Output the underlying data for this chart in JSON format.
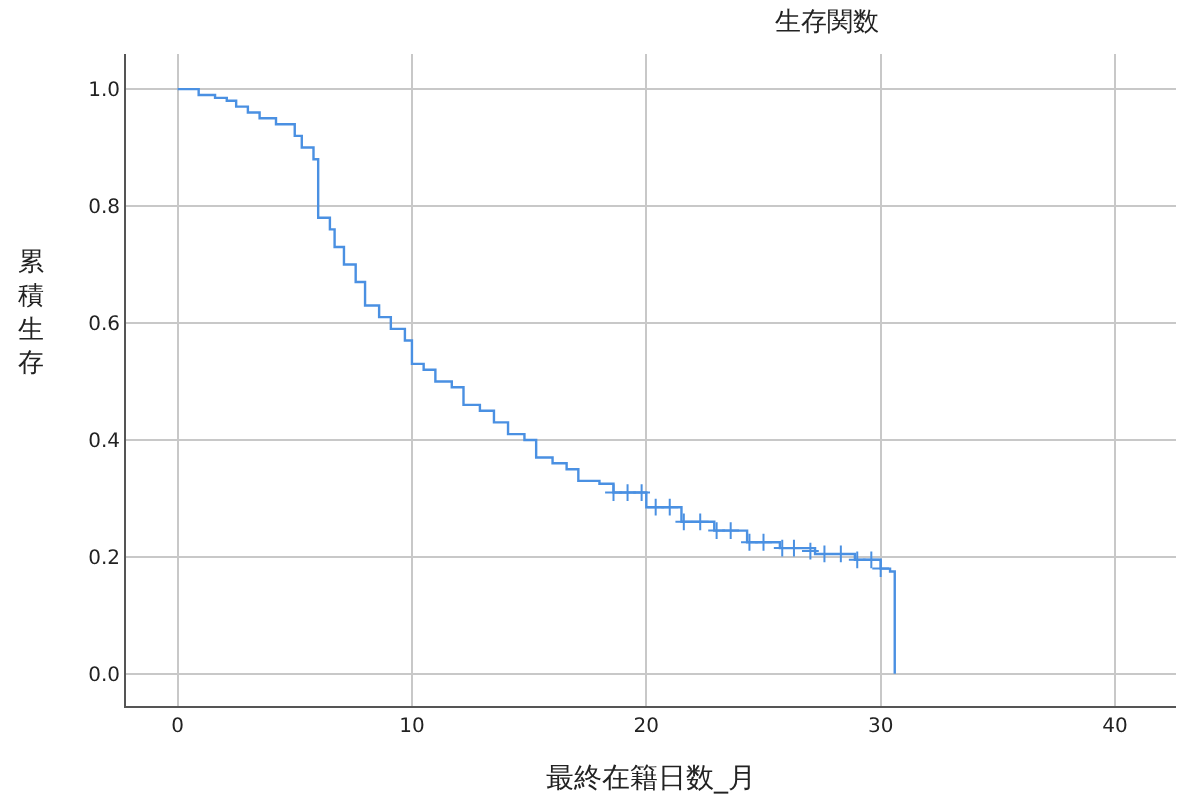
{
  "chart_data": {
    "type": "step",
    "title": "生存関数",
    "xlabel": "最終在籍日数_月",
    "ylabel": "累積生存",
    "xlim": [
      -2.2,
      42.6
    ],
    "xticks": [
      0,
      10,
      20,
      30,
      40
    ],
    "ylim": [
      -0.055,
      1.06
    ],
    "yticks": [
      {
        "value": 0,
        "label": "0.0"
      },
      {
        "value": 0.2,
        "label": "0.2"
      },
      {
        "value": 0.4,
        "label": "0.4"
      },
      {
        "value": 0.6,
        "label": "0.6"
      },
      {
        "value": 0.8,
        "label": "0.8"
      },
      {
        "value": 1,
        "label": "1.0"
      }
    ],
    "grid": true,
    "series": [
      {
        "color": "#4a90e2",
        "marker": "none",
        "x": [
          0,
          0.9,
          1.6,
          2.1,
          2.5,
          3.0,
          3.5,
          4.2,
          5.0,
          5.3,
          5.8,
          6.0,
          6.5,
          6.7,
          7.1,
          7.6,
          8.0,
          8.6,
          9.1,
          9.7,
          10.0,
          10.5,
          11.0,
          11.7,
          12.2,
          12.9,
          13.5,
          14.1,
          14.8,
          15.3,
          16.0,
          16.6,
          17.1,
          18.0,
          18.6,
          20.0,
          21.5,
          22.9,
          24.3,
          25.7,
          27.2,
          28.9,
          30.0,
          30.4,
          30.6
        ],
        "values": [
          1.0,
          0.99,
          0.985,
          0.98,
          0.97,
          0.96,
          0.95,
          0.94,
          0.92,
          0.9,
          0.88,
          0.78,
          0.76,
          0.73,
          0.7,
          0.67,
          0.63,
          0.61,
          0.59,
          0.57,
          0.53,
          0.52,
          0.5,
          0.49,
          0.46,
          0.45,
          0.43,
          0.41,
          0.4,
          0.37,
          0.36,
          0.35,
          0.33,
          0.325,
          0.31,
          0.285,
          0.26,
          0.245,
          0.225,
          0.215,
          0.205,
          0.195,
          0.18,
          0.175,
          0.0
        ]
      },
      {
        "type": "scatter",
        "color": "#4a90e2",
        "marker": "cross",
        "x": [
          18.6,
          19.2,
          19.8,
          20.4,
          21.0,
          21.6,
          22.3,
          23.0,
          23.6,
          24.4,
          25.0,
          25.8,
          26.3,
          27.0,
          27.6,
          28.3,
          29.0,
          29.6,
          30.0
        ],
        "values": [
          0.31,
          0.31,
          0.31,
          0.285,
          0.285,
          0.26,
          0.26,
          0.245,
          0.245,
          0.225,
          0.225,
          0.215,
          0.215,
          0.21,
          0.205,
          0.205,
          0.195,
          0.195,
          0.18
        ]
      }
    ]
  }
}
